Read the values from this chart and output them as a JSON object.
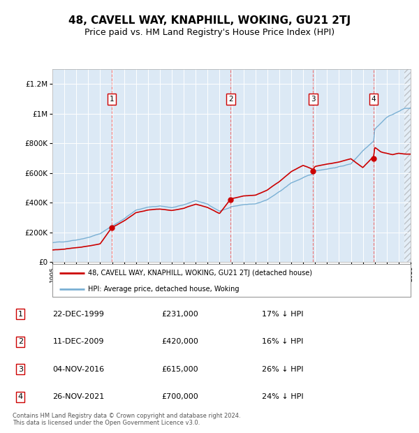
{
  "title": "48, CAVELL WAY, KNAPHILL, WOKING, GU21 2TJ",
  "subtitle": "Price paid vs. HM Land Registry's House Price Index (HPI)",
  "title_fontsize": 11,
  "subtitle_fontsize": 9,
  "sale_color": "#cc0000",
  "hpi_color": "#7ab0d4",
  "background_color": "#dce9f5",
  "ylim": [
    0,
    1300000
  ],
  "yticks": [
    0,
    200000,
    400000,
    600000,
    800000,
    1000000,
    1200000
  ],
  "ytick_labels": [
    "£0",
    "£200K",
    "£400K",
    "£600K",
    "£800K",
    "£1M",
    "£1.2M"
  ],
  "sales": [
    {
      "date": 1999.97,
      "price": 231000,
      "label": "1"
    },
    {
      "date": 2009.94,
      "price": 420000,
      "label": "2"
    },
    {
      "date": 2016.84,
      "price": 615000,
      "label": "3"
    },
    {
      "date": 2021.91,
      "price": 700000,
      "label": "4"
    }
  ],
  "sale_vline_color": "#ee6666",
  "table_rows": [
    [
      "1",
      "22-DEC-1999",
      "£231,000",
      "17% ↓ HPI"
    ],
    [
      "2",
      "11-DEC-2009",
      "£420,000",
      "16% ↓ HPI"
    ],
    [
      "3",
      "04-NOV-2016",
      "£615,000",
      "26% ↓ HPI"
    ],
    [
      "4",
      "26-NOV-2021",
      "£700,000",
      "24% ↓ HPI"
    ]
  ],
  "legend_labels": [
    "48, CAVELL WAY, KNAPHILL, WOKING, GU21 2TJ (detached house)",
    "HPI: Average price, detached house, Woking"
  ],
  "footnote": "Contains HM Land Registry data © Crown copyright and database right 2024.\nThis data is licensed under the Open Government Licence v3.0.",
  "xmin": 1995,
  "xmax": 2025,
  "hpi_points": [
    [
      1995.0,
      130000
    ],
    [
      1996.0,
      137000
    ],
    [
      1997.0,
      152000
    ],
    [
      1998.0,
      170000
    ],
    [
      1999.0,
      195000
    ],
    [
      2000.0,
      248000
    ],
    [
      2001.0,
      295000
    ],
    [
      2002.0,
      355000
    ],
    [
      2003.0,
      375000
    ],
    [
      2004.0,
      380000
    ],
    [
      2005.0,
      370000
    ],
    [
      2006.0,
      385000
    ],
    [
      2007.0,
      415000
    ],
    [
      2008.0,
      390000
    ],
    [
      2009.0,
      345000
    ],
    [
      2009.94,
      370000
    ],
    [
      2010.0,
      375000
    ],
    [
      2011.0,
      385000
    ],
    [
      2012.0,
      390000
    ],
    [
      2013.0,
      420000
    ],
    [
      2014.0,
      470000
    ],
    [
      2015.0,
      530000
    ],
    [
      2016.0,
      565000
    ],
    [
      2016.84,
      590000
    ],
    [
      2017.0,
      610000
    ],
    [
      2018.0,
      625000
    ],
    [
      2019.0,
      640000
    ],
    [
      2020.0,
      660000
    ],
    [
      2021.0,
      750000
    ],
    [
      2021.91,
      820000
    ],
    [
      2022.0,
      900000
    ],
    [
      2023.0,
      980000
    ],
    [
      2024.0,
      1020000
    ],
    [
      2024.5,
      1040000
    ],
    [
      2025.0,
      1040000
    ]
  ],
  "sale_hpi_points": [
    [
      1995.0,
      81000
    ],
    [
      1996.0,
      85000
    ],
    [
      1997.0,
      95000
    ],
    [
      1998.0,
      106000
    ],
    [
      1999.0,
      122000
    ],
    [
      1999.97,
      231000
    ],
    [
      2001.0,
      277000
    ],
    [
      2002.0,
      333000
    ],
    [
      2003.0,
      352000
    ],
    [
      2004.0,
      357000
    ],
    [
      2005.0,
      347000
    ],
    [
      2006.0,
      361000
    ],
    [
      2007.0,
      389000
    ],
    [
      2008.0,
      366000
    ],
    [
      2009.0,
      324000
    ],
    [
      2009.94,
      420000
    ],
    [
      2011.0,
      438000
    ],
    [
      2012.0,
      444000
    ],
    [
      2013.0,
      478000
    ],
    [
      2014.0,
      535000
    ],
    [
      2015.0,
      603000
    ],
    [
      2016.0,
      643000
    ],
    [
      2016.84,
      615000
    ],
    [
      2017.0,
      635000
    ],
    [
      2018.0,
      650000
    ],
    [
      2019.0,
      665000
    ],
    [
      2020.0,
      686000
    ],
    [
      2021.0,
      625000
    ],
    [
      2021.91,
      700000
    ],
    [
      2022.0,
      760000
    ],
    [
      2022.5,
      730000
    ],
    [
      2023.0,
      720000
    ],
    [
      2023.5,
      710000
    ],
    [
      2024.0,
      720000
    ],
    [
      2024.5,
      715000
    ]
  ]
}
